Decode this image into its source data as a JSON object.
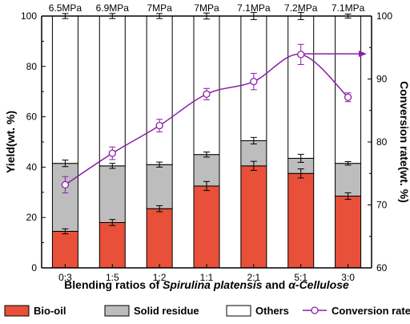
{
  "chart_data": {
    "type": "bar",
    "stacked": true,
    "categories": [
      "0:3",
      "1:5",
      "1:2",
      "1:1",
      "2:1",
      "5:1",
      "3:0"
    ],
    "pressures": [
      "6.5MPa",
      "6.9MPa",
      "7MPa",
      "7MPa",
      "7.1MPa",
      "7.2MPa",
      "7.1MPa"
    ],
    "xlabel_parts": [
      {
        "text": "Blending ratios of ",
        "italic": false
      },
      {
        "text": "Spirulina platensis",
        "italic": true
      },
      {
        "text": " and ",
        "italic": false
      },
      {
        "text": "α-Cellulose",
        "italic": true
      }
    ],
    "ylabel": "Yield(wt. %)",
    "y2label": "Conversion rate(wt. %)",
    "ylim": [
      0,
      100
    ],
    "yticks": [
      0,
      20,
      40,
      60,
      80,
      100
    ],
    "y2lim": [
      60,
      100
    ],
    "y2ticks": [
      60,
      70,
      80,
      90,
      100
    ],
    "series": [
      {
        "name": "Bio-oil",
        "color": "#e8503a",
        "values": [
          14.5,
          18,
          23.5,
          32.5,
          40.5,
          37.5,
          28.5
        ],
        "errors": [
          1,
          1.2,
          1.2,
          1.8,
          1.8,
          1.8,
          1.3
        ]
      },
      {
        "name": "Solid residue",
        "color": "#bdbdbd",
        "values": [
          27,
          22.5,
          17.5,
          12.5,
          10,
          6,
          13
        ],
        "errors": [
          1.3,
          1,
          1,
          1,
          1.3,
          1.6,
          0.7
        ]
      },
      {
        "name": "Others",
        "color": "#ffffff",
        "values": [
          58.5,
          59.5,
          59,
          55,
          49.5,
          56.5,
          58.5
        ],
        "errors": [
          1,
          1,
          1,
          1.2,
          1.4,
          1.4,
          0.8
        ]
      }
    ],
    "line_series": {
      "name": "Conversion rate",
      "color": "#8b1fa9",
      "axis": "right",
      "values": [
        73.2,
        78.2,
        82.6,
        87.6,
        89.6,
        93.9,
        87.1
      ],
      "errors": [
        1.3,
        1.0,
        1.0,
        0.9,
        1.3,
        1.6,
        0.7
      ],
      "extension_end": 94
    },
    "legend_position": "bottom"
  }
}
